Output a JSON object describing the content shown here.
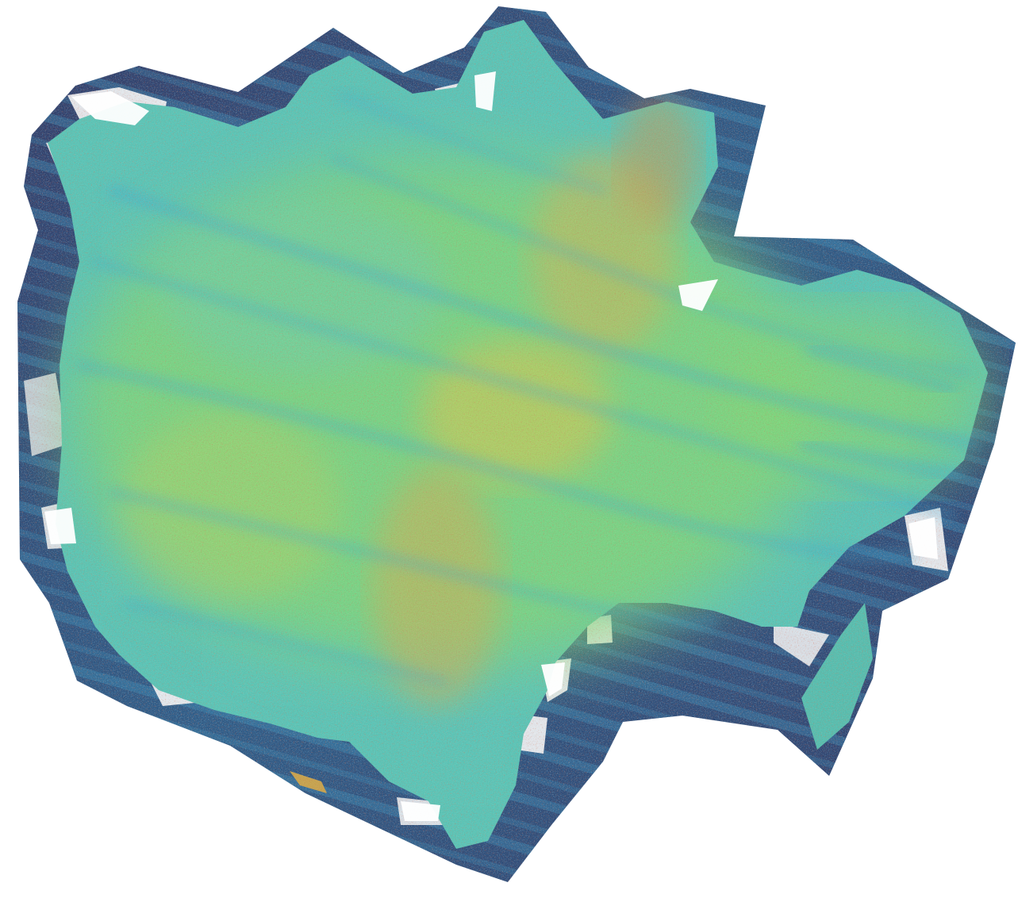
{
  "map": {
    "kind": "sonar-backscatter-mosaic",
    "colormap": "blue-green-yellow-red",
    "colors": {
      "background": "#ffffff",
      "outer_low": "#1f2a5c",
      "outer_mid": "#1d5b8a",
      "cyan": "#35b6d6",
      "teal": "#3fc4b0",
      "green": "#7ddc6a",
      "yellow": "#c9d84a",
      "orange": "#e08a2c",
      "red": "#b8281c",
      "gap": "#ffffff"
    },
    "legend_visible": false,
    "axes_visible": false,
    "labels_visible": false
  }
}
